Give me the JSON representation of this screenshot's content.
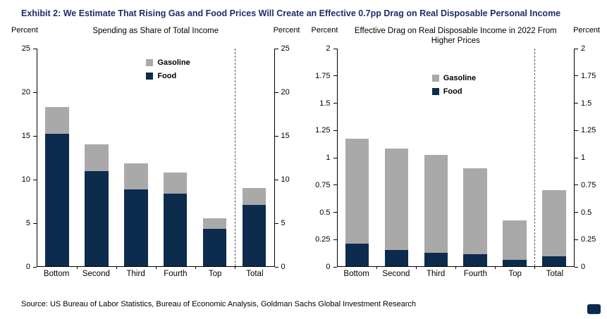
{
  "title": "Exhibit 2: We Estimate That Rising Gas and Food Prices Will Create an Effective 0.7pp Drag on Real Disposable Personal Income",
  "source": "Source: US Bureau of Labor Statistics, Bureau of Economic Analysis, Goldman Sachs Global Investment Research",
  "axis_unit": "Percent",
  "colors": {
    "title": "#1d2d6b",
    "food": "#0c2b4d",
    "gasoline": "#a9a9a9",
    "axis": "#000000",
    "logo": "#0c2b4d"
  },
  "chart_data": [
    {
      "type": "bar",
      "stacked": true,
      "title": "Spending as Share of Total Income",
      "ylabel": "Percent",
      "ylim": [
        0,
        25
      ],
      "ytick_step": 5,
      "grid": false,
      "legend_position": "top-center-inside",
      "legend": [
        "Gasoline",
        "Food"
      ],
      "categories": [
        "Bottom",
        "Second",
        "Third",
        "Fourth",
        "Top",
        "Total"
      ],
      "separator_before": "Total",
      "series": [
        {
          "name": "Food",
          "values": [
            15.2,
            10.9,
            8.8,
            8.3,
            4.3,
            7.0
          ]
        },
        {
          "name": "Gasoline",
          "values": [
            3.1,
            3.1,
            3.0,
            2.5,
            1.2,
            2.0
          ]
        }
      ],
      "totals": [
        18.3,
        14.0,
        11.8,
        10.8,
        5.5,
        9.0
      ]
    },
    {
      "type": "bar",
      "stacked": true,
      "title": "Effective Drag on Real Disposable Income in 2022 From Higher Prices",
      "ylabel": "Percent",
      "ylim": [
        0,
        2
      ],
      "ytick_step": 0.25,
      "grid": false,
      "legend_position": "top-center-inside",
      "legend": [
        "Gasoline",
        "Food"
      ],
      "categories": [
        "Bottom",
        "Second",
        "Third",
        "Fourth",
        "Top",
        "Total"
      ],
      "separator_before": "Total",
      "series": [
        {
          "name": "Food",
          "values": [
            0.21,
            0.15,
            0.12,
            0.11,
            0.06,
            0.09
          ]
        },
        {
          "name": "Gasoline",
          "values": [
            0.96,
            0.93,
            0.9,
            0.79,
            0.36,
            0.61
          ]
        }
      ],
      "totals": [
        1.17,
        1.08,
        1.02,
        0.9,
        0.42,
        0.7
      ]
    }
  ]
}
